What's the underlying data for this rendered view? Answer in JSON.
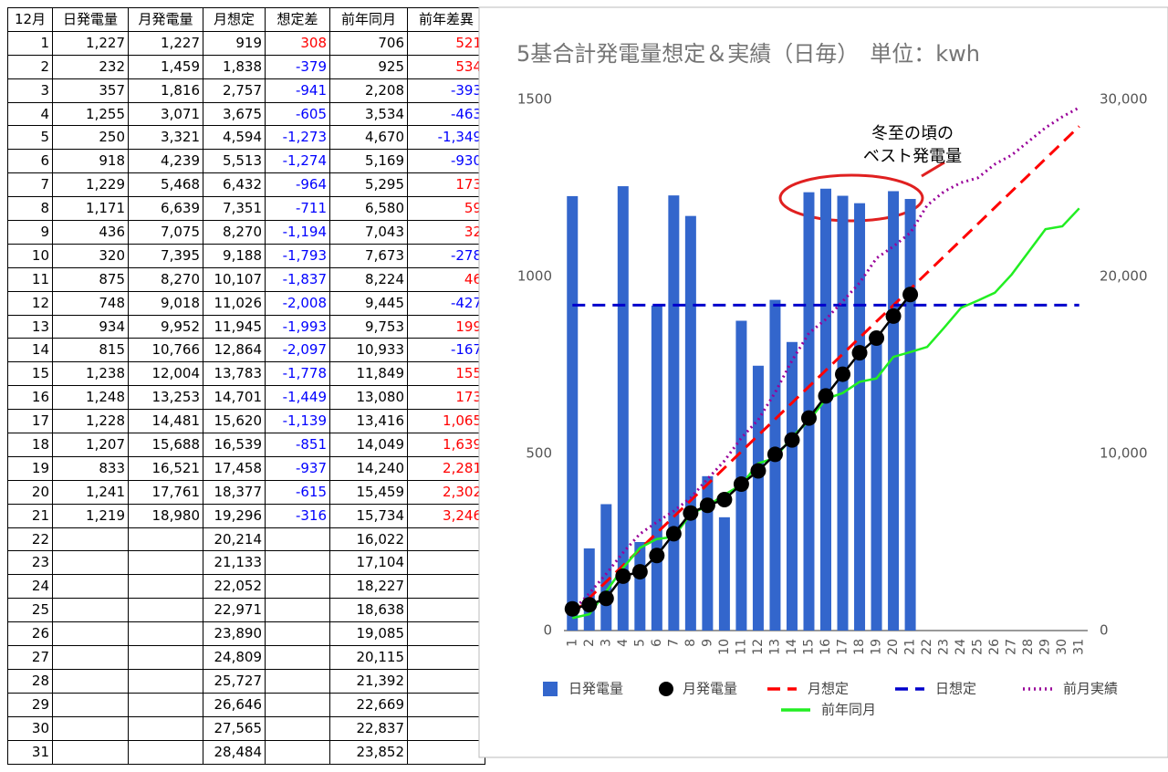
{
  "table": {
    "header": [
      "12月",
      "日発電量",
      "月発電量",
      "月想定",
      "想定差",
      "前年同月",
      "前年差異"
    ],
    "rows": [
      [
        "1",
        "1,227",
        "1,227",
        "919",
        "308",
        "706",
        "521"
      ],
      [
        "2",
        "232",
        "1,459",
        "1,838",
        "-379",
        "925",
        "534"
      ],
      [
        "3",
        "357",
        "1,816",
        "2,757",
        "-941",
        "2,208",
        "-393"
      ],
      [
        "4",
        "1,255",
        "3,071",
        "3,675",
        "-605",
        "3,534",
        "-463"
      ],
      [
        "5",
        "250",
        "3,321",
        "4,594",
        "-1,273",
        "4,670",
        "-1,349"
      ],
      [
        "6",
        "918",
        "4,239",
        "5,513",
        "-1,274",
        "5,169",
        "-930"
      ],
      [
        "7",
        "1,229",
        "5,468",
        "6,432",
        "-964",
        "5,295",
        "173"
      ],
      [
        "8",
        "1,171",
        "6,639",
        "7,351",
        "-711",
        "6,580",
        "59"
      ],
      [
        "9",
        "436",
        "7,075",
        "8,270",
        "-1,194",
        "7,043",
        "32"
      ],
      [
        "10",
        "320",
        "7,395",
        "9,188",
        "-1,793",
        "7,673",
        "-278"
      ],
      [
        "11",
        "875",
        "8,270",
        "10,107",
        "-1,837",
        "8,224",
        "46"
      ],
      [
        "12",
        "748",
        "9,018",
        "11,026",
        "-2,008",
        "9,445",
        "-427"
      ],
      [
        "13",
        "934",
        "9,952",
        "11,945",
        "-1,993",
        "9,753",
        "199"
      ],
      [
        "14",
        "815",
        "10,766",
        "12,864",
        "-2,097",
        "10,933",
        "-167"
      ],
      [
        "15",
        "1,238",
        "12,004",
        "13,783",
        "-1,778",
        "11,849",
        "155"
      ],
      [
        "16",
        "1,248",
        "13,253",
        "14,701",
        "-1,449",
        "13,080",
        "173"
      ],
      [
        "17",
        "1,228",
        "14,481",
        "15,620",
        "-1,139",
        "13,416",
        "1,065"
      ],
      [
        "18",
        "1,207",
        "15,688",
        "16,539",
        "-851",
        "14,049",
        "1,639"
      ],
      [
        "19",
        "833",
        "16,521",
        "17,458",
        "-937",
        "14,240",
        "2,281"
      ],
      [
        "20",
        "1,241",
        "17,761",
        "18,377",
        "-615",
        "15,459",
        "2,302"
      ],
      [
        "21",
        "1,219",
        "18,980",
        "19,296",
        "-316",
        "15,734",
        "3,246"
      ],
      [
        "22",
        null,
        null,
        "20,214",
        null,
        "16,022",
        null
      ],
      [
        "23",
        null,
        null,
        "21,133",
        null,
        "17,104",
        null
      ],
      [
        "24",
        null,
        null,
        "22,052",
        null,
        "18,227",
        null
      ],
      [
        "25",
        null,
        null,
        "22,971",
        null,
        "18,638",
        null
      ],
      [
        "26",
        null,
        null,
        "23,890",
        null,
        "19,085",
        null
      ],
      [
        "27",
        null,
        null,
        "24,809",
        null,
        "20,115",
        null
      ],
      [
        "28",
        null,
        null,
        "25,727",
        null,
        "21,392",
        null
      ],
      [
        "29",
        null,
        null,
        "26,646",
        null,
        "22,669",
        null
      ],
      [
        "30",
        null,
        null,
        "27,565",
        null,
        "22,837",
        null
      ],
      [
        "31",
        null,
        null,
        "28,484",
        null,
        "23,852",
        null
      ]
    ],
    "positive_color": "#ff0000",
    "negative_color": "#0000ff"
  },
  "chart_data": {
    "type": "bar",
    "title": "5基合計発電量想定＆実績（日毎）　単位：kwh",
    "annotation": [
      "冬至の頃の",
      "ベスト発電量"
    ],
    "categories": [
      "1",
      "2",
      "3",
      "4",
      "5",
      "6",
      "7",
      "8",
      "9",
      "10",
      "11",
      "12",
      "13",
      "14",
      "15",
      "16",
      "17",
      "18",
      "19",
      "20",
      "21",
      "22",
      "23",
      "24",
      "25",
      "26",
      "27",
      "28",
      "29",
      "30",
      "31"
    ],
    "ylim": [
      0,
      1500
    ],
    "yticks": [
      0,
      500,
      1000,
      1500
    ],
    "y2lim": [
      0,
      30000
    ],
    "y2ticks": [
      0,
      {
        "value": 10000,
        "label": "10,000"
      },
      {
        "value": 20000,
        "label": "20,000"
      },
      {
        "value": 30000,
        "label": "30,000"
      }
    ],
    "grid": false,
    "series": [
      {
        "name": "日発電量",
        "type": "bar",
        "color": "#3366cc",
        "values": [
          1227,
          232,
          357,
          1255,
          250,
          918,
          1229,
          1171,
          436,
          320,
          875,
          748,
          934,
          815,
          1238,
          1248,
          1228,
          1207,
          833,
          1241,
          1219,
          null,
          null,
          null,
          null,
          null,
          null,
          null,
          null,
          null,
          null
        ]
      },
      {
        "name": "月発電量",
        "type": "line",
        "axis": "y2",
        "color": "#000000",
        "dash": "solid",
        "marker": true,
        "values": [
          1227,
          1459,
          1816,
          3071,
          3321,
          4239,
          5468,
          6639,
          7075,
          7395,
          8270,
          9018,
          9952,
          10766,
          12004,
          13253,
          14481,
          15688,
          16521,
          17761,
          18980,
          null,
          null,
          null,
          null,
          null,
          null,
          null,
          null,
          null,
          null
        ]
      },
      {
        "name": "月想定",
        "type": "line",
        "axis": "y2",
        "color": "#ff0000",
        "dash": "dashed",
        "values": [
          919,
          1838,
          2757,
          3675,
          4594,
          5513,
          6432,
          7351,
          8270,
          9188,
          10107,
          11026,
          11945,
          12864,
          13783,
          14701,
          15620,
          16539,
          17458,
          18377,
          19296,
          20214,
          21133,
          22052,
          22971,
          23890,
          24809,
          25727,
          26646,
          27565,
          28484
        ]
      },
      {
        "name": "日想定",
        "type": "line",
        "color": "#0000cc",
        "dash": "dashed",
        "values": [
          919,
          919,
          919,
          919,
          919,
          919,
          919,
          919,
          919,
          919,
          919,
          919,
          919,
          919,
          919,
          919,
          919,
          919,
          919,
          919,
          919,
          919,
          919,
          919,
          919,
          919,
          919,
          919,
          919,
          919,
          919
        ]
      },
      {
        "name": "前月実績",
        "type": "line",
        "axis": "y2",
        "color": "#990099",
        "dash": "dotted",
        "values": [
          1100,
          2100,
          3200,
          4400,
          5460,
          6130,
          6750,
          7500,
          8560,
          9590,
          10880,
          11900,
          13450,
          15260,
          16800,
          17580,
          18600,
          19640,
          21030,
          21700,
          22470,
          24020,
          24800,
          25300,
          25570,
          26340,
          26860,
          27630,
          28400,
          29020,
          29540
        ]
      },
      {
        "name": "前年同月",
        "type": "line",
        "axis": "y2",
        "color": "#22ee22",
        "dash": "solid",
        "values": [
          706,
          925,
          2208,
          3534,
          4670,
          5169,
          5295,
          6580,
          7043,
          7673,
          8224,
          9445,
          9753,
          10933,
          11849,
          13080,
          13416,
          14049,
          14240,
          15459,
          15734,
          16022,
          17104,
          18227,
          18638,
          19085,
          20115,
          21392,
          22669,
          22837,
          23852
        ]
      }
    ]
  }
}
